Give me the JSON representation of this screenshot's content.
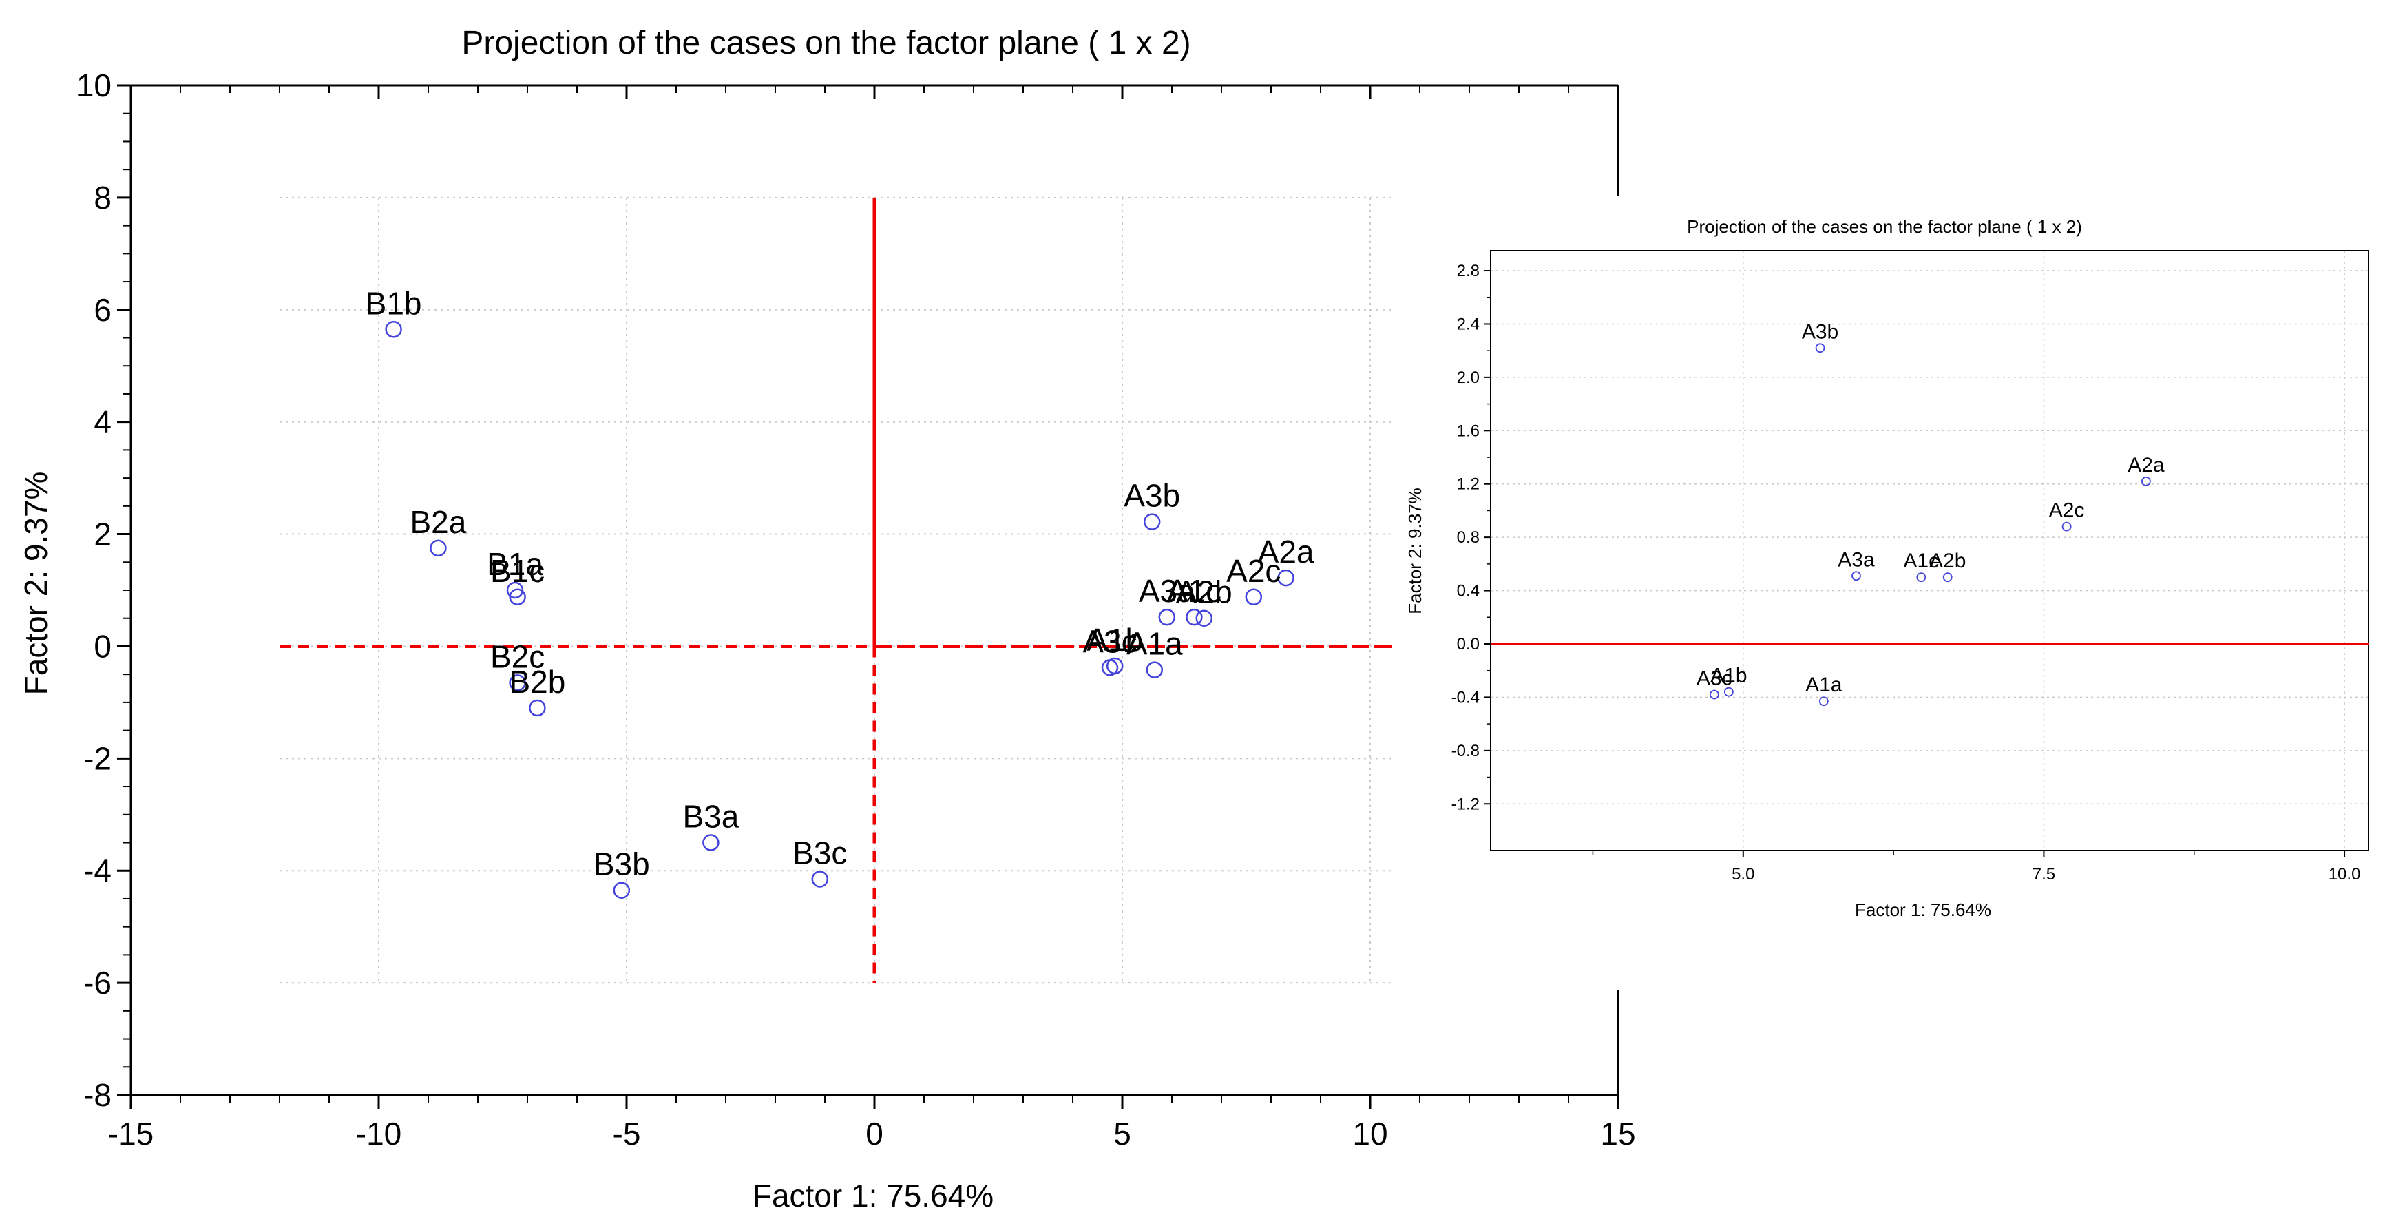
{
  "main_title": "Projection of the cases on the factor plane (  1 x   2)",
  "inset_title": "Projection of the cases on the factor plane (  1 x   2)",
  "colors": {
    "points": "#4444dd",
    "lines": "#ee0000",
    "axes": "#000000",
    "grid": "#c8c8c8"
  },
  "chart_data": [
    {
      "type": "scatter",
      "title": "Projection of the cases on the factor plane (  1 x   2)",
      "xlabel": "Factor  1: 75.64%",
      "ylabel": "Factor  2:  9.37%",
      "xlim": [
        -15,
        15
      ],
      "ylim": [
        -8,
        10
      ],
      "xticks": [
        "-15",
        "-10",
        "-5",
        "0",
        "5",
        "10",
        "15"
      ],
      "yticks": [
        "-8",
        "-6",
        "-4",
        "-2",
        "0",
        "2",
        "4",
        "6",
        "8",
        "10"
      ],
      "reference_lines": {
        "horizontal": {
          "y": 0,
          "from_x": -12,
          "to_x": 10.5
        },
        "vertical": {
          "x": 0,
          "from_y": -6,
          "to_y": 8
        }
      },
      "points": [
        {
          "label": "B1b",
          "x": -9.7,
          "y": 5.65
        },
        {
          "label": "B2a",
          "x": -8.8,
          "y": 1.75
        },
        {
          "label": "B1a",
          "x": -7.25,
          "y": 1.0
        },
        {
          "label": "B1c",
          "x": -7.2,
          "y": 0.88
        },
        {
          "label": "B2c",
          "x": -7.2,
          "y": -0.65
        },
        {
          "label": "B2b",
          "x": -6.8,
          "y": -1.1
        },
        {
          "label": "B3a",
          "x": -3.3,
          "y": -3.5
        },
        {
          "label": "B3b",
          "x": -5.1,
          "y": -4.35
        },
        {
          "label": "B3c",
          "x": -1.1,
          "y": -4.15
        },
        {
          "label": "A3b",
          "x": 5.6,
          "y": 2.22
        },
        {
          "label": "A2a",
          "x": 8.3,
          "y": 1.22
        },
        {
          "label": "A2c",
          "x": 7.65,
          "y": 0.88
        },
        {
          "label": "A3a",
          "x": 5.9,
          "y": 0.52
        },
        {
          "label": "A1c",
          "x": 6.45,
          "y": 0.52
        },
        {
          "label": "A2b",
          "x": 6.65,
          "y": 0.5
        },
        {
          "label": "A1b",
          "x": 4.85,
          "y": -0.35
        },
        {
          "label": "A3c",
          "x": 4.75,
          "y": -0.38
        },
        {
          "label": "A1a",
          "x": 5.65,
          "y": -0.42
        }
      ]
    },
    {
      "type": "scatter",
      "title": "Projection of the cases on the factor plane (  1 x   2)",
      "xlabel": "Factor  1: 75.64%",
      "ylabel": "Factor  2:  9.37%",
      "xlim": [
        2.9,
        10.2
      ],
      "ylim": [
        -1.55,
        2.95
      ],
      "xticks": [
        "5.0",
        "7.5",
        "10.0"
      ],
      "yticks": [
        "-1.2",
        "-0.8",
        "-0.4",
        "0.0",
        "0.4",
        "0.8",
        "1.2",
        "1.6",
        "2.0",
        "2.4",
        "2.8"
      ],
      "reference_lines": {
        "horizontal": {
          "y": 0
        }
      },
      "points": [
        {
          "label": "A3b",
          "x": 5.64,
          "y": 2.22
        },
        {
          "label": "A2a",
          "x": 8.35,
          "y": 1.22
        },
        {
          "label": "A2c",
          "x": 7.69,
          "y": 0.88
        },
        {
          "label": "A3a",
          "x": 5.94,
          "y": 0.51
        },
        {
          "label": "A1c",
          "x": 6.48,
          "y": 0.5
        },
        {
          "label": "A2b",
          "x": 6.7,
          "y": 0.5
        },
        {
          "label": "A1b",
          "x": 4.88,
          "y": -0.36
        },
        {
          "label": "A3c",
          "x": 4.76,
          "y": -0.38
        },
        {
          "label": "A1a",
          "x": 5.67,
          "y": -0.43
        }
      ]
    }
  ]
}
